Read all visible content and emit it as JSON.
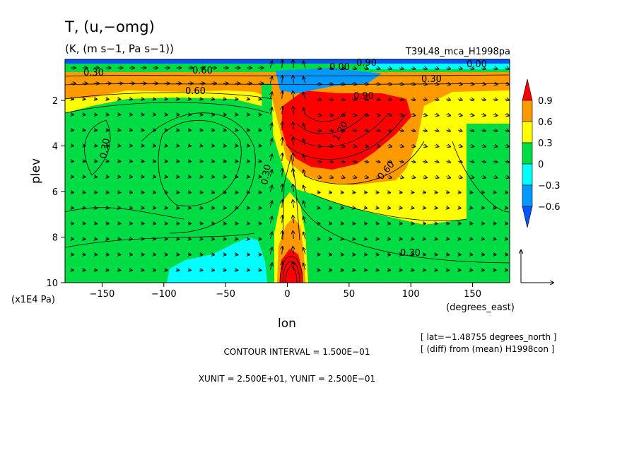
{
  "chart_data": {
    "type": "heatmap",
    "title": "T, (u,−omg)",
    "subtitle": "(K, (m s−1, Pa s−1))",
    "experiment": "T39L48_mca_H1998pa",
    "xlabel": "lon",
    "xunits": "(degrees_east)",
    "ylabel": "plev",
    "yunits": "(x1E4 Pa)",
    "xlim": [
      -180,
      180
    ],
    "ylim": [
      10,
      0.2
    ],
    "xticks": [
      -150,
      -100,
      -50,
      0,
      50,
      100,
      150
    ],
    "xtick_labels": [
      "−150",
      "−100",
      "−50",
      "0",
      "50",
      "100",
      "150"
    ],
    "yticks": [
      2,
      4,
      6,
      8,
      10
    ],
    "ytick_labels": [
      "2",
      "4",
      "6",
      "8",
      "10"
    ],
    "colorbar": {
      "labels": [
        "0.9",
        "0.6",
        "0.3",
        "0",
        "−0.3",
        "−0.6"
      ],
      "levels": [
        0.9,
        0.6,
        0.3,
        0,
        -0.3,
        -0.6
      ],
      "colors": [
        "#ff0000",
        "#ff9900",
        "#ffff00",
        "#00dd44",
        "#00ffff",
        "#0099ff",
        "#0055ff"
      ]
    },
    "contour_labels": [
      "0.30",
      "0.60",
      "0.90",
      "1.20",
      "0.30",
      "0.60",
      "0.30",
      "0.60",
      "0.90",
      "0.00",
      "0.00",
      "0.30",
      "0.30"
    ],
    "info_lat": "[ lat=−1.48755 degrees_north ]",
    "info_diff": "[ (diff) from (mean) H1998con ]",
    "contour_interval": "CONTOUR INTERVAL = 1.500E−01",
    "units_line": "XUNIT = 2.500E+01, YUNIT = 2.500E−01",
    "grid": false
  }
}
